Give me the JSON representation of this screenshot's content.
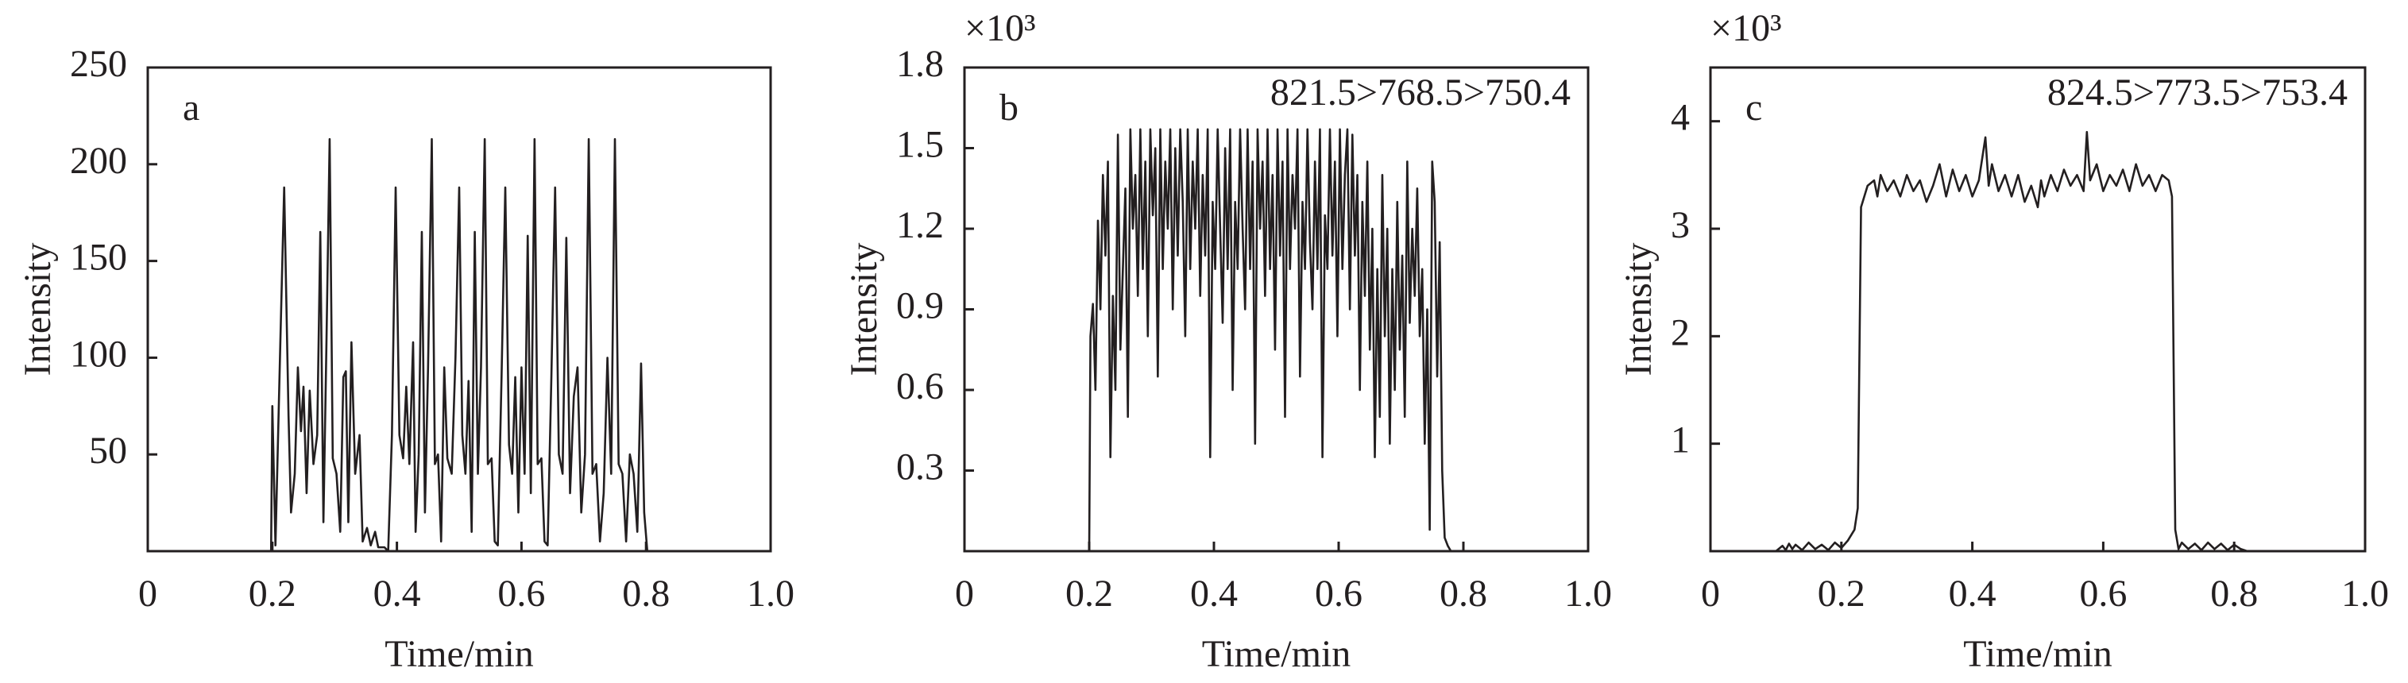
{
  "chart_data": [
    {
      "type": "line",
      "panel_label": "a",
      "xlabel": "Time/min",
      "ylabel": "Intensity",
      "color": "#231f20",
      "xlim": [
        0,
        1
      ],
      "xticks": [
        0,
        0.2,
        0.4,
        0.6,
        0.8,
        {
          "value": 1,
          "label": "1.0"
        }
      ],
      "ylim": [
        0,
        250
      ],
      "yticks": [
        50,
        100,
        150,
        200,
        250
      ],
      "x": [
        0.19,
        0.198,
        0.2,
        0.205,
        0.213,
        0.219,
        0.226,
        0.23,
        0.236,
        0.241,
        0.246,
        0.25,
        0.255,
        0.26,
        0.266,
        0.272,
        0.277,
        0.282,
        0.287,
        0.292,
        0.297,
        0.303,
        0.309,
        0.314,
        0.318,
        0.322,
        0.327,
        0.333,
        0.34,
        0.345,
        0.352,
        0.358,
        0.365,
        0.37,
        0.38,
        0.386,
        0.392,
        0.398,
        0.404,
        0.41,
        0.415,
        0.42,
        0.426,
        0.43,
        0.435,
        0.44,
        0.445,
        0.45,
        0.456,
        0.461,
        0.466,
        0.471,
        0.476,
        0.481,
        0.488,
        0.494,
        0.5,
        0.505,
        0.51,
        0.515,
        0.52,
        0.525,
        0.53,
        0.535,
        0.541,
        0.546,
        0.552,
        0.557,
        0.562,
        0.568,
        0.574,
        0.58,
        0.585,
        0.59,
        0.595,
        0.6,
        0.605,
        0.61,
        0.615,
        0.621,
        0.626,
        0.632,
        0.637,
        0.642,
        0.648,
        0.654,
        0.66,
        0.666,
        0.672,
        0.678,
        0.684,
        0.69,
        0.696,
        0.702,
        0.708,
        0.714,
        0.72,
        0.726,
        0.732,
        0.738,
        0.744,
        0.75,
        0.756,
        0.762,
        0.768,
        0.774,
        0.78,
        0.786,
        0.792,
        0.797,
        0.802,
        0.81
      ],
      "values": [
        0,
        0,
        75,
        3,
        110,
        188,
        70,
        20,
        40,
        95,
        62,
        85,
        30,
        83,
        45,
        60,
        165,
        15,
        110,
        213,
        48,
        40,
        10,
        90,
        93,
        15,
        108,
        40,
        60,
        5,
        12,
        3,
        10,
        2,
        2,
        0,
        60,
        188,
        60,
        48,
        85,
        45,
        108,
        10,
        50,
        165,
        20,
        95,
        213,
        45,
        50,
        5,
        95,
        48,
        40,
        100,
        188,
        60,
        40,
        88,
        10,
        165,
        40,
        95,
        213,
        45,
        48,
        5,
        3,
        90,
        188,
        55,
        40,
        90,
        20,
        95,
        40,
        163,
        30,
        213,
        45,
        48,
        5,
        3,
        90,
        188,
        50,
        40,
        162,
        30,
        80,
        95,
        20,
        50,
        213,
        40,
        45,
        5,
        30,
        100,
        40,
        213,
        45,
        40,
        5,
        50,
        40,
        10,
        97,
        20,
        0,
        0
      ]
    },
    {
      "type": "line",
      "panel_label": "b",
      "annotation": "821.5>768.5>750.4",
      "y_multiplier": "×10³",
      "xlabel": "Time/min",
      "ylabel": "Intensity",
      "color": "#231f20",
      "xlim": [
        0,
        1
      ],
      "xticks": [
        0,
        0.2,
        0.4,
        0.6,
        0.8,
        {
          "value": 1,
          "label": "1.0"
        }
      ],
      "ylim": [
        0,
        1.8
      ],
      "yticks": [
        0.3,
        0.6,
        0.9,
        1.2,
        1.5,
        1.8
      ],
      "x": [
        0.2,
        0.202,
        0.206,
        0.21,
        0.214,
        0.218,
        0.222,
        0.226,
        0.23,
        0.234,
        0.238,
        0.242,
        0.246,
        0.25,
        0.254,
        0.258,
        0.262,
        0.266,
        0.27,
        0.274,
        0.278,
        0.282,
        0.286,
        0.29,
        0.294,
        0.298,
        0.302,
        0.306,
        0.31,
        0.314,
        0.318,
        0.322,
        0.326,
        0.33,
        0.334,
        0.338,
        0.342,
        0.346,
        0.35,
        0.354,
        0.358,
        0.362,
        0.366,
        0.37,
        0.374,
        0.378,
        0.382,
        0.386,
        0.39,
        0.394,
        0.398,
        0.402,
        0.406,
        0.41,
        0.414,
        0.418,
        0.422,
        0.426,
        0.43,
        0.434,
        0.438,
        0.442,
        0.446,
        0.45,
        0.454,
        0.458,
        0.462,
        0.466,
        0.47,
        0.474,
        0.478,
        0.482,
        0.486,
        0.49,
        0.494,
        0.498,
        0.502,
        0.506,
        0.51,
        0.514,
        0.518,
        0.522,
        0.526,
        0.53,
        0.534,
        0.538,
        0.542,
        0.546,
        0.55,
        0.554,
        0.558,
        0.562,
        0.566,
        0.57,
        0.574,
        0.578,
        0.582,
        0.586,
        0.59,
        0.594,
        0.598,
        0.602,
        0.606,
        0.61,
        0.614,
        0.618,
        0.622,
        0.626,
        0.63,
        0.634,
        0.638,
        0.642,
        0.646,
        0.65,
        0.654,
        0.658,
        0.662,
        0.666,
        0.67,
        0.674,
        0.678,
        0.682,
        0.686,
        0.69,
        0.694,
        0.698,
        0.702,
        0.706,
        0.71,
        0.714,
        0.718,
        0.722,
        0.726,
        0.73,
        0.734,
        0.738,
        0.742,
        0.746,
        0.75,
        0.754,
        0.758,
        0.762,
        0.766,
        0.77,
        0.775,
        0.78,
        0.8
      ],
      "values": [
        0,
        0.8,
        0.92,
        0.6,
        1.23,
        0.9,
        1.4,
        1.1,
        1.45,
        0.35,
        0.95,
        0.6,
        1.55,
        0.75,
        1.05,
        1.35,
        0.5,
        1.57,
        1.2,
        1.4,
        0.95,
        1.57,
        1.05,
        1.45,
        0.8,
        1.57,
        1.25,
        1.5,
        0.65,
        1.57,
        1.05,
        1.45,
        1.2,
        1.57,
        0.9,
        1.5,
        1.1,
        1.57,
        1.3,
        0.8,
        1.57,
        1.05,
        1.45,
        1.2,
        1.57,
        0.95,
        1.4,
        1.1,
        1.57,
        0.35,
        1.3,
        1.05,
        1.57,
        1.2,
        0.85,
        1.5,
        1.05,
        1.57,
        0.6,
        1.3,
        1.05,
        1.57,
        1.2,
        0.9,
        1.57,
        1.05,
        1.45,
        0.4,
        1.57,
        1.2,
        1.45,
        0.95,
        1.57,
        1.05,
        1.4,
        0.75,
        1.57,
        1.1,
        1.45,
        0.5,
        1.57,
        1.05,
        1.4,
        1.2,
        1.57,
        0.65,
        1.3,
        1.05,
        1.57,
        1.15,
        0.9,
        1.45,
        1.05,
        1.57,
        0.35,
        1.25,
        1.05,
        1.57,
        1.1,
        1.45,
        0.8,
        1.57,
        1.05,
        1.4,
        1.57,
        0.9,
        1.55,
        1.1,
        1.4,
        0.6,
        1.3,
        0.95,
        1.45,
        0.75,
        1.2,
        0.35,
        1.05,
        0.5,
        1.4,
        0.8,
        1.2,
        0.4,
        1.05,
        0.6,
        1.3,
        0.75,
        1.1,
        0.5,
        1.45,
        0.85,
        1.2,
        0.95,
        1.35,
        0.8,
        1.05,
        0.4,
        0.9,
        0.08,
        1.45,
        1.3,
        0.65,
        1.15,
        0.3,
        0.05,
        0.02,
        0,
        0
      ]
    },
    {
      "type": "line",
      "panel_label": "c",
      "annotation": "824.5>773.5>753.4",
      "y_multiplier": "×10³",
      "xlabel": "Time/min",
      "ylabel": "Intensity",
      "color": "#231f20",
      "xlim": [
        0,
        1
      ],
      "xticks": [
        0,
        0.2,
        0.4,
        0.6,
        0.8,
        {
          "value": 1,
          "label": "1.0"
        }
      ],
      "ylim": [
        0,
        4.5
      ],
      "yticks": [
        1,
        2,
        3,
        4
      ],
      "x": [
        0,
        0.1,
        0.11,
        0.115,
        0.12,
        0.125,
        0.13,
        0.14,
        0.15,
        0.16,
        0.17,
        0.18,
        0.19,
        0.2,
        0.21,
        0.22,
        0.225,
        0.23,
        0.235,
        0.24,
        0.25,
        0.255,
        0.26,
        0.27,
        0.28,
        0.29,
        0.3,
        0.31,
        0.32,
        0.33,
        0.34,
        0.35,
        0.36,
        0.37,
        0.38,
        0.39,
        0.4,
        0.41,
        0.42,
        0.425,
        0.43,
        0.44,
        0.45,
        0.46,
        0.47,
        0.48,
        0.49,
        0.5,
        0.505,
        0.51,
        0.52,
        0.53,
        0.54,
        0.55,
        0.56,
        0.57,
        0.575,
        0.58,
        0.59,
        0.6,
        0.61,
        0.62,
        0.63,
        0.64,
        0.65,
        0.66,
        0.67,
        0.68,
        0.69,
        0.7,
        0.705,
        0.71,
        0.715,
        0.72,
        0.73,
        0.74,
        0.75,
        0.76,
        0.77,
        0.78,
        0.79,
        0.8,
        0.81,
        0.82,
        1
      ],
      "values": [
        0,
        0,
        0.05,
        0.01,
        0.07,
        0.02,
        0.06,
        0.01,
        0.08,
        0.02,
        0.06,
        0.01,
        0.08,
        0.03,
        0.1,
        0.2,
        0.4,
        3.2,
        3.3,
        3.4,
        3.45,
        3.3,
        3.5,
        3.35,
        3.45,
        3.3,
        3.5,
        3.35,
        3.45,
        3.25,
        3.4,
        3.6,
        3.3,
        3.55,
        3.35,
        3.5,
        3.3,
        3.45,
        3.85,
        3.4,
        3.6,
        3.35,
        3.5,
        3.3,
        3.5,
        3.25,
        3.4,
        3.2,
        3.45,
        3.3,
        3.5,
        3.35,
        3.55,
        3.4,
        3.5,
        3.35,
        3.9,
        3.45,
        3.6,
        3.35,
        3.5,
        3.4,
        3.55,
        3.35,
        3.6,
        3.4,
        3.5,
        3.35,
        3.5,
        3.45,
        3.3,
        0.2,
        0.02,
        0.08,
        0.02,
        0.07,
        0.01,
        0.08,
        0.02,
        0.07,
        0.01,
        0.06,
        0.02,
        0,
        0
      ]
    }
  ]
}
